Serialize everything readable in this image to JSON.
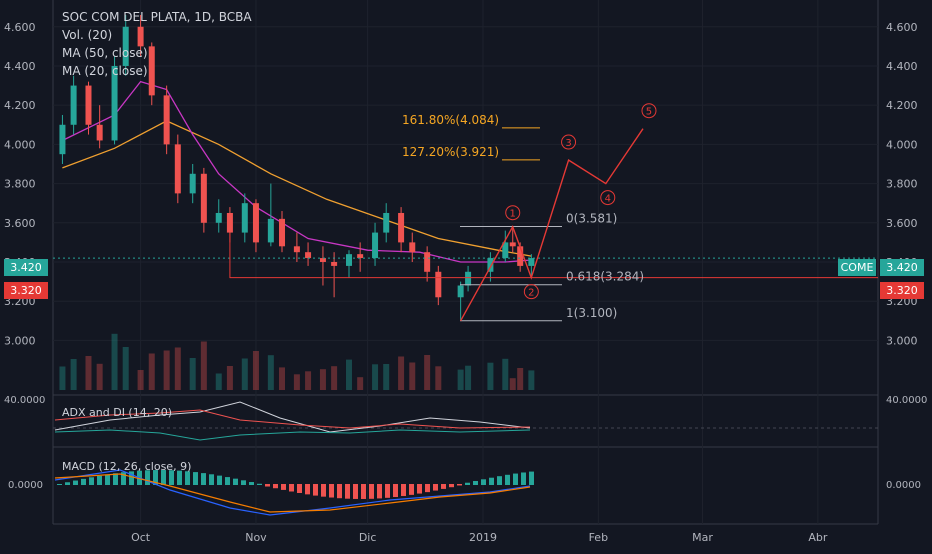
{
  "chart_data": {
    "type": "candlestick",
    "symbol_title": "SOC COM DEL PLATA, 1D, BCBA",
    "indicators": [
      "Vol. (20)",
      "MA (50, close)",
      "MA (20, close)"
    ],
    "last_price_label": "COME",
    "last_price": "3.420",
    "line_price": "3.320",
    "price_ticks": [
      "4.600",
      "4.400",
      "4.200",
      "4.000",
      "3.800",
      "3.600",
      "3.400",
      "3.200",
      "3.000"
    ],
    "price_ticks_values": [
      4.6,
      4.4,
      4.2,
      4.0,
      3.8,
      3.6,
      3.4,
      3.2,
      3.0
    ],
    "ylim": [
      2.9,
      4.66
    ],
    "x_labels": [
      "Oct",
      "Nov",
      "Dic",
      "2019",
      "Feb",
      "Mar",
      "Abr"
    ],
    "adx_panel": {
      "label": "ADX and DI (14, 20)",
      "tick": "40.0000"
    },
    "macd_panel": {
      "label": "MACD (12, 26, close, 9)",
      "tick": "0.0000"
    },
    "fibonacci": [
      {
        "label": "161.80%(4.084)",
        "value": 4.084,
        "color": "#f5a623"
      },
      {
        "label": "127.20%(3.921)",
        "value": 3.921,
        "color": "#f5a623"
      },
      {
        "label": "0(3.581)",
        "value": 3.581,
        "color": "#b2b5be"
      },
      {
        "label": "0.618(3.284)",
        "value": 3.284,
        "color": "#b2b5be"
      },
      {
        "label": "1(3.100)",
        "value": 3.1,
        "color": "#b2b5be"
      }
    ],
    "wave_labels": [
      "1",
      "2",
      "3",
      "4",
      "5"
    ],
    "wave_path": [
      {
        "date": "2018-12-26",
        "price": 3.1
      },
      {
        "date": "2019-01-09",
        "price": 3.58
      },
      {
        "date": "2019-01-14",
        "price": 3.32
      },
      {
        "date": "2019-01-24",
        "price": 3.92
      },
      {
        "date": "2019-02-03",
        "price": 3.8
      },
      {
        "date": "2019-02-13",
        "price": 4.08
      }
    ],
    "candles": [
      {
        "date": "2018-09-10",
        "o": 3.95,
        "h": 4.15,
        "l": 3.9,
        "c": 4.1
      },
      {
        "date": "2018-09-13",
        "o": 4.1,
        "h": 4.35,
        "l": 4.05,
        "c": 4.3
      },
      {
        "date": "2018-09-17",
        "o": 4.3,
        "h": 4.32,
        "l": 4.05,
        "c": 4.1
      },
      {
        "date": "2018-09-20",
        "o": 4.1,
        "h": 4.2,
        "l": 3.98,
        "c": 4.02
      },
      {
        "date": "2018-09-24",
        "o": 4.02,
        "h": 4.45,
        "l": 4.0,
        "c": 4.4
      },
      {
        "date": "2018-09-27",
        "o": 4.4,
        "h": 4.66,
        "l": 4.35,
        "c": 4.6
      },
      {
        "date": "2018-10-01",
        "o": 4.6,
        "h": 4.66,
        "l": 4.45,
        "c": 4.5
      },
      {
        "date": "2018-10-04",
        "o": 4.5,
        "h": 4.52,
        "l": 4.2,
        "c": 4.25
      },
      {
        "date": "2018-10-08",
        "o": 4.25,
        "h": 4.3,
        "l": 3.95,
        "c": 4.0
      },
      {
        "date": "2018-10-11",
        "o": 4.0,
        "h": 4.05,
        "l": 3.7,
        "c": 3.75
      },
      {
        "date": "2018-10-15",
        "o": 3.75,
        "h": 3.9,
        "l": 3.7,
        "c": 3.85
      },
      {
        "date": "2018-10-18",
        "o": 3.85,
        "h": 3.88,
        "l": 3.55,
        "c": 3.6
      },
      {
        "date": "2018-10-22",
        "o": 3.6,
        "h": 3.72,
        "l": 3.55,
        "c": 3.65
      },
      {
        "date": "2018-10-25",
        "o": 3.65,
        "h": 3.68,
        "l": 3.5,
        "c": 3.55
      },
      {
        "date": "2018-10-29",
        "o": 3.55,
        "h": 3.75,
        "l": 3.5,
        "c": 3.7
      },
      {
        "date": "2018-11-01",
        "o": 3.7,
        "h": 3.72,
        "l": 3.45,
        "c": 3.5
      },
      {
        "date": "2018-11-05",
        "o": 3.5,
        "h": 3.8,
        "l": 3.48,
        "c": 3.62
      },
      {
        "date": "2018-11-08",
        "o": 3.62,
        "h": 3.66,
        "l": 3.45,
        "c": 3.48
      },
      {
        "date": "2018-11-12",
        "o": 3.48,
        "h": 3.55,
        "l": 3.4,
        "c": 3.45
      },
      {
        "date": "2018-11-15",
        "o": 3.45,
        "h": 3.5,
        "l": 3.38,
        "c": 3.42
      },
      {
        "date": "2018-11-19",
        "o": 3.42,
        "h": 3.48,
        "l": 3.28,
        "c": 3.4
      },
      {
        "date": "2018-11-22",
        "o": 3.4,
        "h": 3.45,
        "l": 3.22,
        "c": 3.38
      },
      {
        "date": "2018-11-26",
        "o": 3.38,
        "h": 3.46,
        "l": 3.32,
        "c": 3.44
      },
      {
        "date": "2018-11-29",
        "o": 3.44,
        "h": 3.5,
        "l": 3.35,
        "c": 3.42
      },
      {
        "date": "2018-12-03",
        "o": 3.42,
        "h": 3.6,
        "l": 3.38,
        "c": 3.55
      },
      {
        "date": "2018-12-06",
        "o": 3.55,
        "h": 3.7,
        "l": 3.5,
        "c": 3.65
      },
      {
        "date": "2018-12-10",
        "o": 3.65,
        "h": 3.68,
        "l": 3.45,
        "c": 3.5
      },
      {
        "date": "2018-12-13",
        "o": 3.5,
        "h": 3.55,
        "l": 3.4,
        "c": 3.45
      },
      {
        "date": "2018-12-17",
        "o": 3.45,
        "h": 3.48,
        "l": 3.3,
        "c": 3.35
      },
      {
        "date": "2018-12-20",
        "o": 3.35,
        "h": 3.38,
        "l": 3.18,
        "c": 3.22
      },
      {
        "date": "2018-12-26",
        "o": 3.22,
        "h": 3.3,
        "l": 3.1,
        "c": 3.28
      },
      {
        "date": "2018-12-28",
        "o": 3.28,
        "h": 3.38,
        "l": 3.25,
        "c": 3.35
      },
      {
        "date": "2019-01-03",
        "o": 3.35,
        "h": 3.45,
        "l": 3.3,
        "c": 3.42
      },
      {
        "date": "2019-01-07",
        "o": 3.42,
        "h": 3.56,
        "l": 3.4,
        "c": 3.5
      },
      {
        "date": "2019-01-09",
        "o": 3.5,
        "h": 3.58,
        "l": 3.45,
        "c": 3.48
      },
      {
        "date": "2019-01-11",
        "o": 3.48,
        "h": 3.5,
        "l": 3.35,
        "c": 3.38
      },
      {
        "date": "2019-01-14",
        "o": 3.38,
        "h": 3.44,
        "l": 3.32,
        "c": 3.42
      }
    ],
    "ma20": [
      {
        "date": "2018-09-10",
        "v": 4.02
      },
      {
        "date": "2018-09-24",
        "v": 4.15
      },
      {
        "date": "2018-10-01",
        "v": 4.32
      },
      {
        "date": "2018-10-08",
        "v": 4.28
      },
      {
        "date": "2018-10-15",
        "v": 4.05
      },
      {
        "date": "2018-10-22",
        "v": 3.85
      },
      {
        "date": "2018-11-01",
        "v": 3.68
      },
      {
        "date": "2018-11-15",
        "v": 3.52
      },
      {
        "date": "2018-12-01",
        "v": 3.46
      },
      {
        "date": "2018-12-15",
        "v": 3.45
      },
      {
        "date": "2018-12-26",
        "v": 3.4
      },
      {
        "date": "2019-01-07",
        "v": 3.4
      },
      {
        "date": "2019-01-14",
        "v": 3.41
      }
    ],
    "ma50": [
      {
        "date": "2018-09-10",
        "v": 3.88
      },
      {
        "date": "2018-09-24",
        "v": 3.98
      },
      {
        "date": "2018-10-08",
        "v": 4.12
      },
      {
        "date": "2018-10-22",
        "v": 4.0
      },
      {
        "date": "2018-11-05",
        "v": 3.85
      },
      {
        "date": "2018-11-20",
        "v": 3.72
      },
      {
        "date": "2018-12-05",
        "v": 3.62
      },
      {
        "date": "2018-12-20",
        "v": 3.52
      },
      {
        "date": "2019-01-05",
        "v": 3.46
      },
      {
        "date": "2019-01-14",
        "v": 3.43
      }
    ],
    "colors": {
      "background": "#131722",
      "up": "#26a69a",
      "down": "#ef5350",
      "ma20": "#c837c4",
      "ma50": "#f0a030",
      "wave": "#e53935",
      "price_badge": "#26a69a",
      "line_badge": "#e53935"
    }
  }
}
